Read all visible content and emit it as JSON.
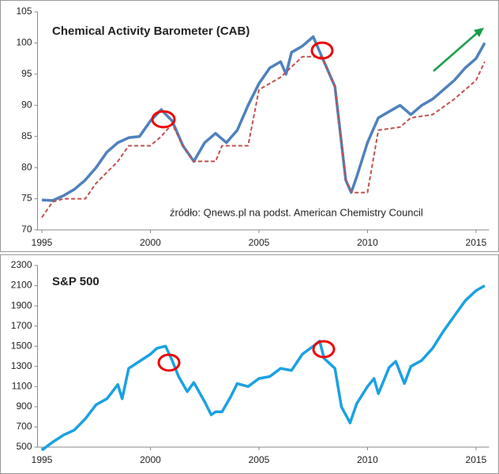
{
  "chart_data": [
    {
      "type": "line",
      "title": "Chemical Activity Barometer (CAB)",
      "annotation": "źródło: Qnews.pl na podst. American Chemistry Council",
      "xlim": [
        1994.8,
        2015.6
      ],
      "xticks": [
        1995,
        2000,
        2005,
        2010,
        2015
      ],
      "ylim": [
        70,
        105
      ],
      "yticks": [
        70,
        75,
        80,
        85,
        90,
        95,
        100,
        105
      ],
      "grid": false,
      "series": [
        {
          "color": "#4f81bd",
          "style": "solid",
          "x": [
            1995.0,
            1995.5,
            1996.0,
            1996.5,
            1997.0,
            1997.5,
            1998.0,
            1998.5,
            1999.0,
            1999.5,
            2000.0,
            2000.5,
            2001.0,
            2001.5,
            2002.0,
            2002.5,
            2003.0,
            2003.5,
            2004.0,
            2004.5,
            2005.0,
            2005.5,
            2006.0,
            2006.25,
            2006.5,
            2007.0,
            2007.5,
            2008.0,
            2008.5,
            2009.0,
            2009.25,
            2009.5,
            2010.0,
            2010.5,
            2011.0,
            2011.5,
            2012.0,
            2012.5,
            2013.0,
            2013.5,
            2014.0,
            2014.5,
            2015.0,
            2015.4
          ],
          "values": [
            74.8,
            74.7,
            75.5,
            76.5,
            78,
            80,
            82.5,
            84,
            84.8,
            85,
            87.5,
            89.3,
            87.5,
            83.5,
            81,
            84,
            85.5,
            84,
            86,
            90,
            93.5,
            96,
            97,
            95,
            98.5,
            99.5,
            101,
            97,
            93,
            78,
            76,
            78.5,
            84,
            88,
            89,
            90,
            88.5,
            90,
            91,
            92.5,
            94,
            96,
            97.5,
            100
          ]
        },
        {
          "color": "#c0504d",
          "style": "dashed",
          "x": [
            1995.0,
            1995.5,
            1996.0,
            1997.0,
            1997.5,
            1998.5,
            1999.0,
            2000.0,
            2000.5,
            2001.0,
            2001.5,
            2002.0,
            2003.0,
            2003.3,
            2004.5,
            2005.0,
            2006.0,
            2007.0,
            2007.9,
            2008.5,
            2009.0,
            2009.3,
            2010.0,
            2010.5,
            2011.5,
            2012.0,
            2013.0,
            2014.0,
            2015.0,
            2015.4
          ],
          "values": [
            72,
            74.5,
            75,
            75,
            77.5,
            81,
            83.5,
            83.5,
            85,
            87,
            83.5,
            81,
            81,
            83.5,
            83.5,
            92.5,
            94.5,
            97.8,
            97.8,
            93,
            78,
            76,
            76,
            86,
            86.5,
            88,
            88.5,
            91,
            94,
            97
          ]
        }
      ]
    },
    {
      "type": "line",
      "title": "S&P 500",
      "xlim": [
        1994.8,
        2015.6
      ],
      "xticks": [
        1995,
        2000,
        2005,
        2010,
        2015
      ],
      "ylim": [
        500,
        2300
      ],
      "yticks": [
        500,
        700,
        900,
        1100,
        1300,
        1500,
        1700,
        1900,
        2100,
        2300
      ],
      "grid": false,
      "series": [
        {
          "color": "#1ba1e2",
          "style": "solid",
          "x": [
            1995.0,
            1995.5,
            1996.0,
            1996.5,
            1997.0,
            1997.5,
            1998.0,
            1998.5,
            1998.7,
            1999.0,
            1999.5,
            2000.0,
            2000.3,
            2000.7,
            2001.0,
            2001.3,
            2001.7,
            2002.0,
            2002.5,
            2002.8,
            2003.0,
            2003.3,
            2003.7,
            2004.0,
            2004.5,
            2005.0,
            2005.5,
            2006.0,
            2006.5,
            2007.0,
            2007.5,
            2007.8,
            2008.0,
            2008.5,
            2008.8,
            2009.2,
            2009.5,
            2010.0,
            2010.3,
            2010.5,
            2011.0,
            2011.3,
            2011.7,
            2012.0,
            2012.5,
            2013.0,
            2013.5,
            2014.0,
            2014.5,
            2015.0,
            2015.4
          ],
          "values": [
            470,
            550,
            620,
            670,
            780,
            920,
            980,
            1120,
            980,
            1280,
            1350,
            1420,
            1480,
            1500,
            1360,
            1200,
            1050,
            1140,
            950,
            820,
            850,
            850,
            1000,
            1130,
            1100,
            1180,
            1200,
            1280,
            1260,
            1420,
            1500,
            1550,
            1380,
            1280,
            900,
            740,
            930,
            1100,
            1180,
            1030,
            1290,
            1350,
            1130,
            1300,
            1360,
            1480,
            1650,
            1800,
            1950,
            2050,
            2100
          ]
        }
      ]
    }
  ]
}
